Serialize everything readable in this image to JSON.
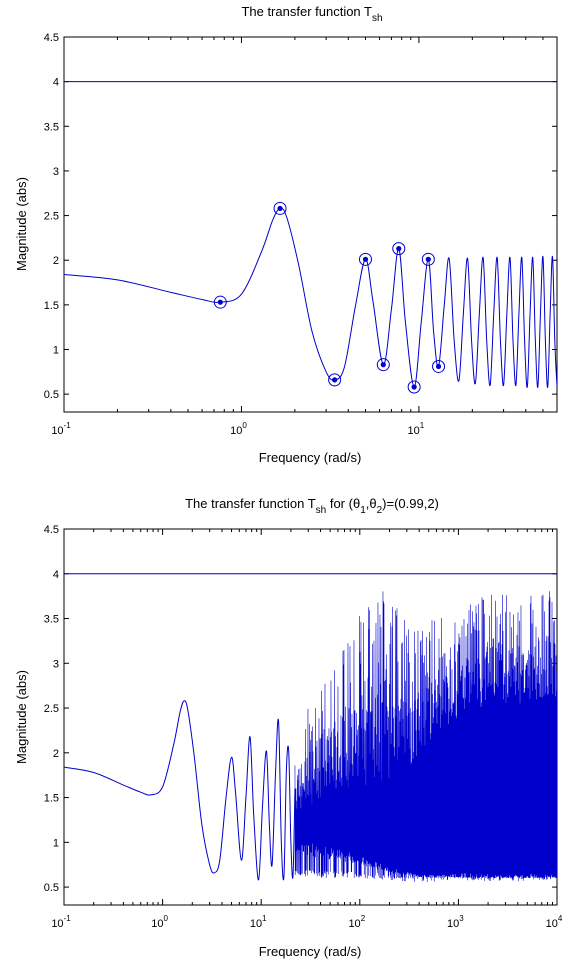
{
  "chart_data": [
    {
      "type": "line",
      "title": "The transfer function T",
      "title_sub": "sh",
      "title_tail": "",
      "xlabel": "Frequency  (rad/s)",
      "ylabel": "Magnitude (abs)",
      "xscale": "log",
      "xlim": [
        0.1,
        60
      ],
      "ylim": [
        0.3,
        4.5
      ],
      "yticks": [
        0.5,
        1,
        1.5,
        2,
        2.5,
        3,
        3.5,
        4,
        4.5
      ],
      "yticklabels": [
        "0.5",
        "1",
        "1.5",
        "2",
        "2.5",
        "3",
        "3.5",
        "4",
        "4.5"
      ],
      "xticks": [
        0.1,
        1,
        10
      ],
      "xticklabels": [
        {
          "base": "10",
          "exp": "-1"
        },
        {
          "base": "10",
          "exp": "0"
        },
        {
          "base": "10",
          "exp": "1"
        }
      ],
      "grid": false,
      "line_color": "#0000cc",
      "series": [
        {
          "values": [
            [
              0.1,
              1.84
            ],
            [
              0.2,
              1.78
            ],
            [
              0.4,
              1.64
            ],
            [
              0.6,
              1.56
            ],
            [
              0.76,
              1.53
            ],
            [
              1.0,
              1.62
            ],
            [
              1.3,
              2.1
            ],
            [
              1.5,
              2.45
            ],
            [
              1.65,
              2.58
            ],
            [
              1.8,
              2.48
            ],
            [
              2.1,
              1.95
            ],
            [
              2.5,
              1.2
            ],
            [
              3.0,
              0.75
            ],
            [
              3.35,
              0.66
            ],
            [
              3.8,
              0.8
            ],
            [
              4.4,
              1.5
            ],
            [
              5.0,
              2.01
            ],
            [
              5.5,
              1.55
            ],
            [
              6.3,
              0.83
            ],
            [
              7.0,
              1.45
            ],
            [
              7.7,
              2.13
            ],
            [
              8.4,
              1.3
            ],
            [
              9.4,
              0.58
            ],
            [
              10.3,
              1.3
            ],
            [
              11.3,
              2.01
            ],
            [
              12.1,
              1.2
            ],
            [
              12.9,
              0.81
            ],
            [
              13.9,
              1.5
            ],
            [
              14.8,
              2.02
            ],
            [
              15.8,
              1.1
            ],
            [
              16.8,
              0.65
            ],
            [
              17.8,
              1.4
            ],
            [
              18.8,
              2.02
            ],
            [
              19.8,
              1.1
            ],
            [
              20.8,
              0.62
            ],
            [
              21.9,
              1.4
            ],
            [
              23.0,
              2.03
            ],
            [
              24.1,
              1.1
            ],
            [
              25.2,
              0.6
            ],
            [
              26.4,
              1.4
            ],
            [
              27.6,
              2.03
            ],
            [
              28.8,
              1.1
            ],
            [
              30.0,
              0.6
            ],
            [
              31.3,
              1.4
            ],
            [
              32.6,
              2.03
            ],
            [
              33.9,
              1.1
            ],
            [
              35.2,
              0.6
            ],
            [
              36.6,
              1.4
            ],
            [
              38.0,
              2.03
            ],
            [
              39.4,
              1.1
            ],
            [
              40.8,
              0.58
            ],
            [
              42.3,
              1.4
            ],
            [
              43.8,
              2.03
            ],
            [
              45.3,
              1.1
            ],
            [
              46.8,
              0.58
            ],
            [
              48.4,
              1.4
            ],
            [
              50.0,
              2.04
            ],
            [
              51.6,
              1.1
            ],
            [
              53.2,
              0.58
            ],
            [
              54.9,
              1.4
            ],
            [
              56.6,
              2.04
            ],
            [
              58.3,
              1.1
            ],
            [
              60.0,
              0.58
            ]
          ]
        },
        {
          "values": [
            [
              0.1,
              4.0
            ],
            [
              60,
              4.0
            ]
          ]
        }
      ],
      "markers": [
        [
          0.76,
          1.53
        ],
        [
          1.65,
          2.58
        ],
        [
          3.35,
          0.66
        ],
        [
          5.0,
          2.01
        ],
        [
          6.3,
          0.83
        ],
        [
          7.7,
          2.13
        ],
        [
          9.4,
          0.58
        ],
        [
          11.3,
          2.01
        ],
        [
          12.9,
          0.81
        ]
      ]
    },
    {
      "type": "line",
      "title": "The transfer function T",
      "title_sub": "sh",
      "title_tail": " for (θ",
      "theta1_sub": "1",
      "title_mid": ",θ",
      "theta2_sub": "2",
      "title_end": ")=(0.99,2)",
      "xlabel": "Frequency  (rad/s)",
      "ylabel": "Magnitude (abs)",
      "xscale": "log",
      "xlim": [
        0.1,
        10000
      ],
      "ylim": [
        0.3,
        4.5
      ],
      "yticks": [
        0.5,
        1,
        1.5,
        2,
        2.5,
        3,
        3.5,
        4,
        4.5
      ],
      "yticklabels": [
        "0.5",
        "1",
        "1.5",
        "2",
        "2.5",
        "3",
        "3.5",
        "4",
        "4.5"
      ],
      "xticks": [
        0.1,
        1,
        10,
        100,
        1000,
        10000
      ],
      "xticklabels": [
        {
          "base": "10",
          "exp": "-1"
        },
        {
          "base": "10",
          "exp": "0"
        },
        {
          "base": "10",
          "exp": "1"
        },
        {
          "base": "10",
          "exp": "2"
        },
        {
          "base": "10",
          "exp": "3"
        },
        {
          "base": "10",
          "exp": "4"
        }
      ],
      "grid": false,
      "line_color": "#0000cc",
      "series": [
        {
          "values": [
            [
              0.1,
              1.84
            ],
            [
              0.2,
              1.78
            ],
            [
              0.4,
              1.64
            ],
            [
              0.6,
              1.56
            ],
            [
              0.76,
              1.53
            ],
            [
              1.0,
              1.62
            ],
            [
              1.3,
              2.1
            ],
            [
              1.5,
              2.45
            ],
            [
              1.65,
              2.58
            ],
            [
              1.8,
              2.48
            ],
            [
              2.1,
              1.95
            ],
            [
              2.5,
              1.2
            ],
            [
              3.0,
              0.75
            ],
            [
              3.35,
              0.66
            ],
            [
              3.8,
              0.8
            ],
            [
              4.4,
              1.5
            ],
            [
              5.0,
              1.95
            ],
            [
              5.5,
              1.55
            ],
            [
              6.3,
              0.8
            ],
            [
              7.0,
              1.5
            ],
            [
              7.7,
              2.18
            ],
            [
              8.4,
              1.3
            ],
            [
              9.4,
              0.58
            ],
            [
              10.3,
              1.4
            ],
            [
              11.3,
              2.02
            ],
            [
              12.1,
              1.2
            ],
            [
              12.9,
              0.75
            ],
            [
              14,
              1.8
            ],
            [
              15,
              2.35
            ],
            [
              16,
              1.0
            ],
            [
              17,
              0.62
            ],
            [
              18,
              1.8
            ],
            [
              19,
              2.02
            ],
            [
              20,
              1.0
            ],
            [
              21,
              0.62
            ],
            [
              22,
              1.6
            ]
          ]
        },
        {
          "values": [
            [
              0.1,
              4.0
            ],
            [
              10000,
              4.0
            ]
          ]
        }
      ],
      "envelope": {
        "x_start": 22,
        "x_end": 10000,
        "upper": [
          [
            22,
            2.1
          ],
          [
            30,
            2.5
          ],
          [
            50,
            2.9
          ],
          [
            80,
            3.3
          ],
          [
            120,
            3.8
          ],
          [
            150,
            3.97
          ],
          [
            250,
            3.6
          ],
          [
            400,
            3.4
          ],
          [
            600,
            3.8
          ],
          [
            1000,
            3.5
          ],
          [
            2000,
            3.9
          ],
          [
            4000,
            3.7
          ],
          [
            8000,
            3.85
          ],
          [
            10000,
            3.8
          ]
        ],
        "lower": [
          [
            22,
            0.62
          ],
          [
            50,
            0.6
          ],
          [
            100,
            0.6
          ],
          [
            200,
            0.58
          ],
          [
            400,
            0.55
          ],
          [
            1000,
            0.58
          ],
          [
            3000,
            0.56
          ],
          [
            10000,
            0.58
          ]
        ],
        "band_lower": [
          [
            30,
            1.0
          ],
          [
            50,
            0.95
          ],
          [
            100,
            0.85
          ],
          [
            200,
            0.72
          ],
          [
            400,
            0.64
          ],
          [
            1000,
            0.62
          ],
          [
            10000,
            0.62
          ]
        ],
        "band_upper": [
          [
            30,
            1.35
          ],
          [
            50,
            1.6
          ],
          [
            100,
            1.55
          ],
          [
            300,
            1.8
          ],
          [
            600,
            2.2
          ],
          [
            1000,
            2.4
          ],
          [
            3000,
            2.5
          ],
          [
            10000,
            2.6
          ]
        ]
      }
    }
  ]
}
